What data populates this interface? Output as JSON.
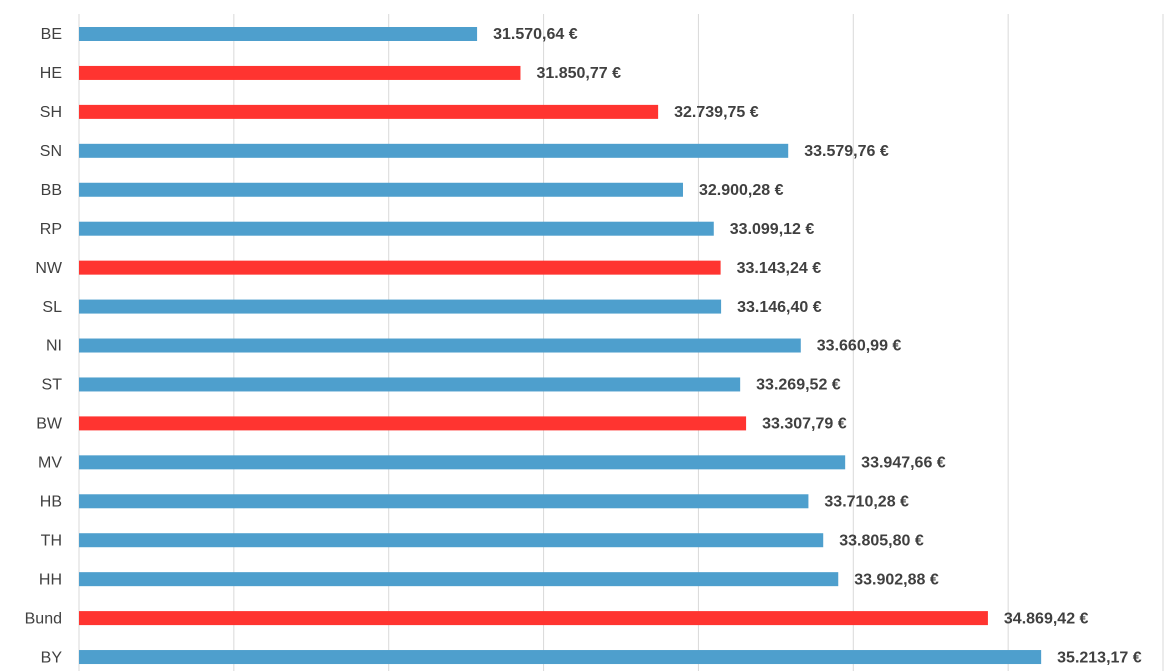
{
  "chart_data": {
    "type": "bar",
    "orientation": "horizontal",
    "categories": [
      "BE",
      "HE",
      "SH",
      "SN",
      "BB",
      "RP",
      "NW",
      "SL",
      "NI",
      "ST",
      "BW",
      "MV",
      "HB",
      "TH",
      "HH",
      "Bund",
      "BY"
    ],
    "values": [
      31570.64,
      31850.77,
      32739.75,
      33579.76,
      32900.28,
      33099.12,
      33143.24,
      33146.4,
      33660.99,
      33269.52,
      33307.79,
      33947.66,
      33710.28,
      33805.8,
      33902.88,
      34869.42,
      35213.17
    ],
    "value_labels": [
      "31.570,64 €",
      "31.850,77 €",
      "32.739,75 €",
      "33.579,76 €",
      "32.900,28 €",
      "33.099,12 €",
      "33.143,24 €",
      "33.146,40 €",
      "33.660,99 €",
      "33.269,52 €",
      "33.307,79 €",
      "33.947,66 €",
      "33.710,28 €",
      "33.805,80 €",
      "33.902,88 €",
      "34.869,42 €",
      "35.213,17 €"
    ],
    "colors": [
      "#4e9fcd",
      "#ff3430",
      "#ff3430",
      "#4e9fcd",
      "#4e9fcd",
      "#4e9fcd",
      "#ff3430",
      "#4e9fcd",
      "#4e9fcd",
      "#4e9fcd",
      "#ff3430",
      "#4e9fcd",
      "#4e9fcd",
      "#4e9fcd",
      "#4e9fcd",
      "#ff3430",
      "#4e9fcd"
    ],
    "xlim": [
      29000,
      36000
    ],
    "xticks": [
      29000,
      30000,
      31000,
      32000,
      33000,
      34000,
      35000,
      36000
    ],
    "grid": true
  }
}
